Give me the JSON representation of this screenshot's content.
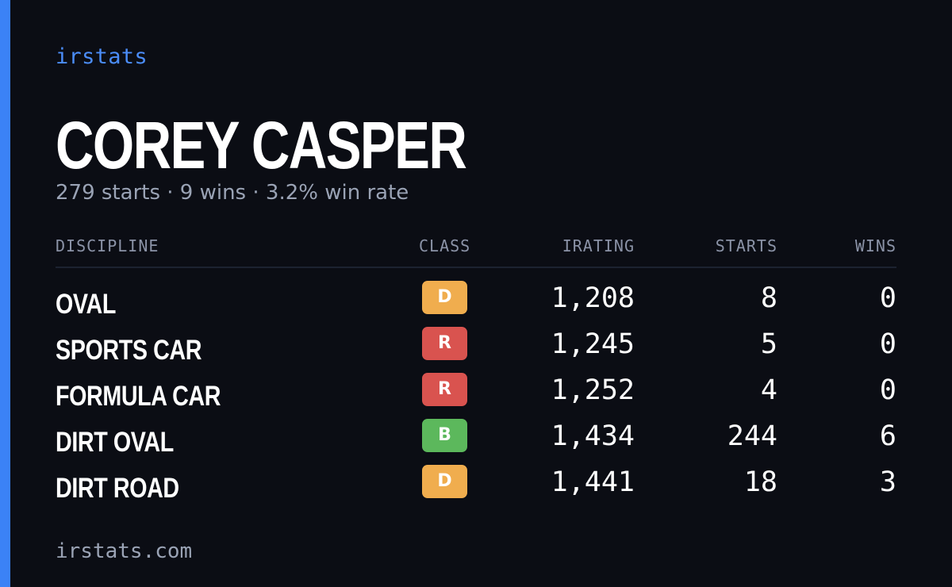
{
  "brand": "irstats",
  "player": {
    "name": "COREY CASPER",
    "summary": "279 starts · 9 wins · 3.2% win rate"
  },
  "table": {
    "headers": {
      "discipline": "DISCIPLINE",
      "class": "CLASS",
      "irating": "IRATING",
      "starts": "STARTS",
      "wins": "WINS"
    },
    "rows": [
      {
        "discipline": "OVAL",
        "class": "D",
        "class_color": "#f0ad4e",
        "irating": "1,208",
        "starts": "8",
        "wins": "0"
      },
      {
        "discipline": "SPORTS CAR",
        "class": "R",
        "class_color": "#d9534f",
        "irating": "1,245",
        "starts": "5",
        "wins": "0"
      },
      {
        "discipline": "FORMULA CAR",
        "class": "R",
        "class_color": "#d9534f",
        "irating": "1,252",
        "starts": "4",
        "wins": "0"
      },
      {
        "discipline": "DIRT OVAL",
        "class": "B",
        "class_color": "#5cb85c",
        "irating": "1,434",
        "starts": "244",
        "wins": "6"
      },
      {
        "discipline": "DIRT ROAD",
        "class": "D",
        "class_color": "#f0ad4e",
        "irating": "1,441",
        "starts": "18",
        "wins": "3"
      }
    ]
  },
  "footer": {
    "url": "irstats.com"
  },
  "colors": {
    "accent": "#3b82f6",
    "background": "#0b0d14"
  }
}
